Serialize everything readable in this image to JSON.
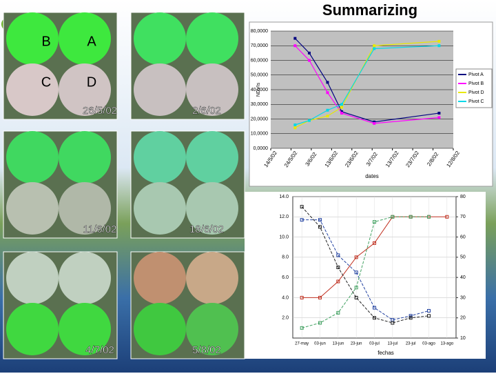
{
  "title": "Summarizing",
  "tiles": [
    {
      "date": "26/5/02",
      "letters": [
        "B",
        "A",
        "C",
        "D"
      ]
    },
    {
      "date": "2/6/02"
    },
    {
      "date": "11/6/02"
    },
    {
      "date": "18/6/02"
    },
    {
      "date": "4/7/02"
    },
    {
      "date": "5/8/02"
    }
  ],
  "chart_data": [
    {
      "type": "line",
      "ylabel": "NDVIs",
      "xlabel": "dates",
      "x": [
        "26/5/02",
        "2/6/02",
        "11/6/02",
        "18/6/02",
        "4/7/02",
        "5/8/02"
      ],
      "xlim": [
        "14/5/02",
        "12/8/02"
      ],
      "xticks": [
        "14/5/02",
        "24/5/02",
        "3/6/02",
        "13/6/02",
        "23/6/02",
        "3/7/02",
        "13/7/02",
        "23/7/02",
        "2/8/02",
        "12/8/02"
      ],
      "ylim": [
        0,
        80000
      ],
      "yticks": [
        {
          "value": 0,
          "label": "0,0000"
        },
        {
          "value": 10000,
          "label": "10,0000"
        },
        {
          "value": 20000,
          "label": "20,0000"
        },
        {
          "value": 30000,
          "label": "30,0000"
        },
        {
          "value": 40000,
          "label": "40,0000"
        },
        {
          "value": 50000,
          "label": "50,0000"
        },
        {
          "value": 60000,
          "label": "60,0000"
        },
        {
          "value": 70000,
          "label": "70,0000"
        },
        {
          "value": 80000,
          "label": "80,0000"
        }
      ],
      "grid": true,
      "legend": "right",
      "series": [
        {
          "name": "Pivot A",
          "color": "#000080",
          "values": [
            75000,
            65000,
            45000,
            25000,
            18000,
            24000
          ]
        },
        {
          "name": "Pivot B",
          "color": "#ff00ff",
          "values": [
            70000,
            60000,
            38000,
            24000,
            17000,
            21000
          ]
        },
        {
          "name": "Pivot D",
          "color": "#e8e800",
          "values": [
            14000,
            19000,
            22000,
            28000,
            70000,
            73000
          ]
        },
        {
          "name": "Pivot C",
          "color": "#00d8e8",
          "values": [
            16000,
            19000,
            26000,
            30000,
            68000,
            70000
          ]
        }
      ]
    },
    {
      "type": "line",
      "xlabel": "fechas",
      "categories": [
        "27-may",
        "03-jun",
        "13-jun",
        "23-jun",
        "03-jul",
        "13-jul",
        "23-jul",
        "03-ago",
        "13-ago"
      ],
      "ylim": [
        0,
        14
      ],
      "y2lim": [
        10,
        80
      ],
      "yticks": [
        {
          "value": 2,
          "label": "2.0"
        },
        {
          "value": 4,
          "label": "4.0"
        },
        {
          "value": 6,
          "label": "6.0"
        },
        {
          "value": 8,
          "label": "8.0"
        },
        {
          "value": 10,
          "label": "10.0"
        },
        {
          "value": 12,
          "label": "12.0"
        },
        {
          "value": 14,
          "label": "14.0"
        }
      ],
      "y2ticks": [
        10,
        20,
        30,
        40,
        50,
        60,
        70,
        80
      ],
      "grid": true,
      "series": [
        {
          "color": "#c03020",
          "axis": "y2",
          "values": [
            30,
            30,
            38,
            50,
            57,
            70,
            70,
            70,
            70
          ]
        },
        {
          "color": "#2040a0",
          "values": [
            11.7,
            11.7,
            8.2,
            6.5,
            3.0,
            1.8,
            2.2,
            2.7,
            null
          ]
        },
        {
          "color": "#202020",
          "values": [
            13,
            11,
            7,
            4,
            2,
            1.5,
            2,
            2.2,
            null
          ]
        },
        {
          "color": "#40a060",
          "values": [
            1,
            1.5,
            2.5,
            5,
            11.5,
            12,
            12,
            12,
            null
          ]
        }
      ]
    }
  ]
}
